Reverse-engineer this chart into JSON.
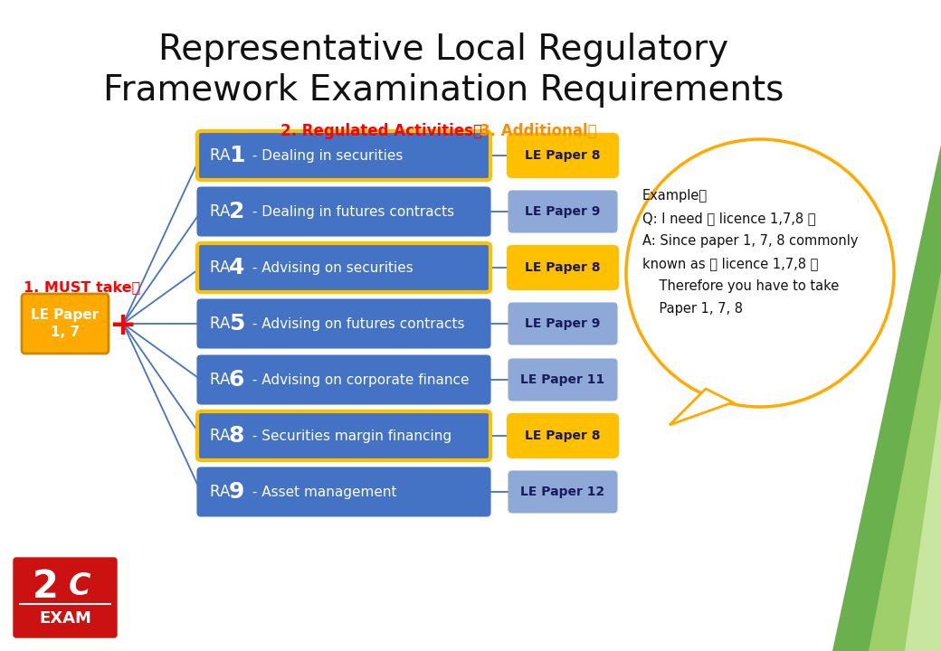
{
  "title_line1": "Representative Local Regulatory",
  "title_line2": "Framework Examination Requirements",
  "title_fontsize": 28,
  "bg_color": "#ffffff",
  "header_ra": "2. Regulated Activities：",
  "header_add": "3. Additional：",
  "header_color_ra": "#ff0000",
  "header_color_add": "#ff8c00",
  "must_take_label": "1. MUST take：",
  "must_take_color": "#ff0000",
  "must_take_box_label": "LE Paper\n1, 7",
  "must_take_box_color": "#ffaa00",
  "ra_rows": [
    {
      "ra_prefix": "RA ",
      "ra_num": "1",
      "desc": " - Dealing in securities",
      "paper": "LE Paper 8",
      "highlight": true
    },
    {
      "ra_prefix": "RA ",
      "ra_num": "2",
      "desc": " - Dealing in futures contracts",
      "paper": "LE Paper 9",
      "highlight": false
    },
    {
      "ra_prefix": "RA ",
      "ra_num": "4",
      "desc": " - Advising on securities",
      "paper": "LE Paper 8",
      "highlight": true
    },
    {
      "ra_prefix": "RA ",
      "ra_num": "5",
      "desc": " - Advising on futures contracts",
      "paper": "LE Paper 9",
      "highlight": false
    },
    {
      "ra_prefix": "RA ",
      "ra_num": "6",
      "desc": " - Advising on corporate finance",
      "paper": "LE Paper 11",
      "highlight": false
    },
    {
      "ra_prefix": "RA ",
      "ra_num": "8",
      "desc": " - Securities margin financing",
      "paper": "LE Paper 8",
      "highlight": true
    },
    {
      "ra_prefix": "RA ",
      "ra_num": "9",
      "desc": " - Asset management",
      "paper": "LE Paper 12",
      "highlight": false
    }
  ],
  "ra_box_color": "#4472c4",
  "ra_box_text_color": "#ffffff",
  "paper_box_color_normal": "#8ea9d8",
  "paper_box_color_highlight": "#ffc000",
  "paper_text_color": "#1a1a5e",
  "example_circle_color": "#ffaa00",
  "example_lines": [
    "Example：",
    "Q: I need 「 licence 1,7,8 」",
    "A: Since paper 1, 7, 8 commonly",
    "known as 「 licence 1,7,8 」",
    "    Therefore you have to take",
    "    Paper 1, 7, 8"
  ],
  "green_dark": "#6ab04c",
  "green_mid": "#9ecf6a",
  "green_light": "#c8e6a0"
}
